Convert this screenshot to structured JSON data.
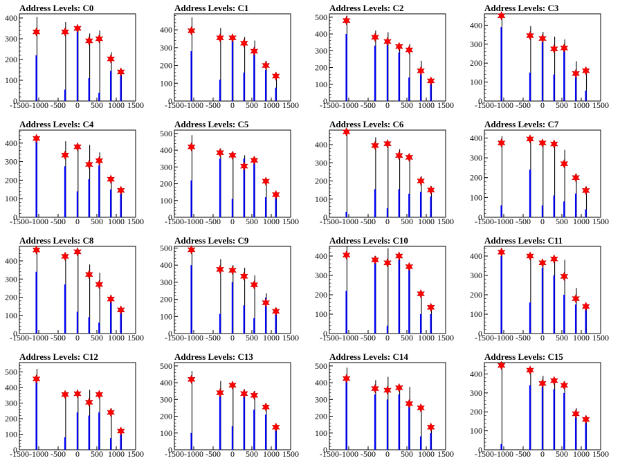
{
  "chart_data": [
    {
      "type": "bar",
      "title": "Address Levels: C0",
      "xlim": [
        -1500,
        1500
      ],
      "ylim": [
        0,
        420
      ],
      "yticks": [
        0,
        100,
        200,
        300,
        400
      ],
      "xticks": [
        "-1500",
        "-1000",
        "-500",
        "0",
        "500",
        "1000",
        "1500"
      ],
      "peak_x": [
        -1060,
        -320,
        0,
        300,
        560,
        860,
        1120
      ],
      "peak_y": [
        333,
        333,
        350,
        290,
        300,
        203,
        140
      ],
      "bar_top": [
        405,
        380,
        360,
        325,
        340,
        235,
        155
      ],
      "blue_part": [
        220,
        55,
        340,
        110,
        40,
        145,
        135
      ]
    },
    {
      "type": "bar",
      "title": "Address Levels: C1",
      "xlim": [
        -1500,
        1500
      ],
      "ylim": [
        0,
        490
      ],
      "yticks": [
        0,
        100,
        200,
        300,
        400
      ],
      "xticks": [
        "-1500",
        "-1000",
        "-500",
        "0",
        "500",
        "1000",
        "1500"
      ],
      "peak_x": [
        -1060,
        -320,
        0,
        300,
        560,
        860,
        1120
      ],
      "peak_y": [
        395,
        355,
        355,
        325,
        280,
        200,
        140
      ],
      "bar_top": [
        470,
        410,
        370,
        360,
        340,
        225,
        160
      ],
      "blue_part": [
        280,
        120,
        340,
        160,
        300,
        175,
        75
      ]
    },
    {
      "type": "bar",
      "title": "Address Levels: C2",
      "xlim": [
        -1500,
        1500
      ],
      "ylim": [
        0,
        520
      ],
      "yticks": [
        0,
        100,
        200,
        300,
        400,
        500
      ],
      "xticks": [
        "-1500",
        "-1000",
        "-500",
        "0",
        "500",
        "1000",
        "1500"
      ],
      "peak_x": [
        -1060,
        -320,
        0,
        300,
        560,
        860,
        1120
      ],
      "peak_y": [
        480,
        380,
        355,
        325,
        305,
        180,
        120
      ],
      "bar_top": [
        510,
        420,
        410,
        335,
        340,
        240,
        125
      ],
      "blue_part": [
        400,
        330,
        350,
        290,
        140,
        160,
        105
      ]
    },
    {
      "type": "bar",
      "title": "Address Levels: C3",
      "xlim": [
        -1500,
        1500
      ],
      "ylim": [
        0,
        460
      ],
      "yticks": [
        0,
        100,
        200,
        300,
        400
      ],
      "xticks": [
        "-1500",
        "-1000",
        "-500",
        "0",
        "500",
        "1000",
        "1500"
      ],
      "peak_x": [
        -1060,
        -320,
        0,
        300,
        560,
        860,
        1120
      ],
      "peak_y": [
        450,
        345,
        330,
        275,
        280,
        145,
        160
      ],
      "bar_top": [
        460,
        395,
        365,
        340,
        325,
        210,
        165
      ],
      "blue_part": [
        390,
        150,
        310,
        140,
        280,
        125,
        55
      ]
    },
    {
      "type": "bar",
      "title": "Address Levels: C4",
      "xlim": [
        -1500,
        1500
      ],
      "ylim": [
        0,
        470
      ],
      "yticks": [
        0,
        100,
        200,
        300,
        400
      ],
      "xticks": [
        "-1500",
        "-1000",
        "-500",
        "0",
        "500",
        "1000",
        "1500"
      ],
      "peak_x": [
        -1060,
        -320,
        0,
        300,
        560,
        860,
        1120
      ],
      "peak_y": [
        425,
        335,
        380,
        285,
        305,
        205,
        145
      ],
      "bar_top": [
        440,
        410,
        395,
        390,
        350,
        215,
        150
      ],
      "blue_part": [
        420,
        275,
        140,
        205,
        280,
        150,
        125
      ]
    },
    {
      "type": "bar",
      "title": "Address Levels: C5",
      "xlim": [
        -1500,
        1500
      ],
      "ylim": [
        0,
        520
      ],
      "yticks": [
        0,
        100,
        200,
        300,
        400,
        500
      ],
      "xticks": [
        "-1500",
        "-1000",
        "-500",
        "0",
        "500",
        "1000",
        "1500"
      ],
      "peak_x": [
        -1060,
        -320,
        0,
        300,
        560,
        860,
        1120
      ],
      "peak_y": [
        420,
        385,
        370,
        305,
        340,
        215,
        135
      ],
      "bar_top": [
        490,
        410,
        390,
        370,
        360,
        225,
        145
      ],
      "blue_part": [
        220,
        350,
        110,
        350,
        320,
        120,
        120
      ]
    },
    {
      "type": "bar",
      "title": "Address Levels: C6",
      "xlim": [
        -1500,
        1500
      ],
      "ylim": [
        0,
        480
      ],
      "yticks": [
        0,
        100,
        200,
        300,
        400
      ],
      "xticks": [
        "-1500",
        "-1000",
        "-500",
        "0",
        "500",
        "1000",
        "1500"
      ],
      "peak_x": [
        -1060,
        -320,
        0,
        300,
        560,
        860,
        1120
      ],
      "peak_y": [
        470,
        395,
        405,
        340,
        330,
        200,
        150
      ],
      "bar_top": [
        480,
        440,
        405,
        375,
        340,
        225,
        170
      ],
      "blue_part": [
        30,
        155,
        50,
        155,
        130,
        140,
        115
      ]
    },
    {
      "type": "bar",
      "title": "Address Levels: C7",
      "xlim": [
        -1500,
        1500
      ],
      "ylim": [
        0,
        440
      ],
      "yticks": [
        0,
        100,
        200,
        300,
        400
      ],
      "xticks": [
        "-1500",
        "-1000",
        "-500",
        "0",
        "500",
        "1000",
        "1500"
      ],
      "peak_x": [
        -1060,
        -320,
        0,
        300,
        560,
        860,
        1120
      ],
      "peak_y": [
        375,
        395,
        375,
        370,
        270,
        200,
        135
      ],
      "bar_top": [
        410,
        400,
        380,
        375,
        340,
        220,
        155
      ],
      "blue_part": [
        60,
        240,
        60,
        110,
        80,
        120,
        40
      ]
    },
    {
      "type": "bar",
      "title": "Address Levels: C8",
      "xlim": [
        -1500,
        1500
      ],
      "ylim": [
        0,
        480
      ],
      "yticks": [
        0,
        100,
        200,
        300,
        400
      ],
      "xticks": [
        "-1500",
        "-1000",
        "-500",
        "0",
        "500",
        "1000",
        "1500"
      ],
      "peak_x": [
        -1060,
        -320,
        0,
        300,
        560,
        860,
        1120
      ],
      "peak_y": [
        460,
        425,
        450,
        325,
        270,
        190,
        130
      ],
      "bar_top": [
        470,
        445,
        460,
        380,
        335,
        210,
        140
      ],
      "blue_part": [
        340,
        270,
        120,
        90,
        60,
        190,
        120
      ]
    },
    {
      "type": "bar",
      "title": "Address Levels: C9",
      "xlim": [
        -1500,
        1500
      ],
      "ylim": [
        0,
        510
      ],
      "yticks": [
        0,
        100,
        200,
        300,
        400,
        500
      ],
      "xticks": [
        "-1500",
        "-1000",
        "-500",
        "0",
        "500",
        "1000",
        "1500"
      ],
      "peak_x": [
        -1060,
        -320,
        0,
        300,
        560,
        860,
        1120
      ],
      "peak_y": [
        490,
        375,
        370,
        335,
        285,
        180,
        130
      ],
      "bar_top": [
        500,
        435,
        400,
        385,
        340,
        235,
        150
      ],
      "blue_part": [
        400,
        115,
        300,
        165,
        90,
        210,
        120
      ]
    },
    {
      "type": "bar",
      "title": "Address Levels: C10",
      "xlim": [
        -1500,
        1500
      ],
      "ylim": [
        0,
        450
      ],
      "yticks": [
        0,
        100,
        200,
        300,
        400
      ],
      "xticks": [
        "-1500",
        "-1000",
        "-500",
        "0",
        "500",
        "1000",
        "1500"
      ],
      "peak_x": [
        -1060,
        -320,
        0,
        300,
        560,
        860,
        1120
      ],
      "peak_y": [
        405,
        380,
        365,
        400,
        345,
        205,
        135
      ],
      "bar_top": [
        450,
        400,
        440,
        405,
        350,
        220,
        150
      ],
      "blue_part": [
        220,
        380,
        40,
        380,
        330,
        100,
        100
      ]
    },
    {
      "type": "bar",
      "title": "Address Levels: C11",
      "xlim": [
        -1500,
        1500
      ],
      "ylim": [
        0,
        450
      ],
      "yticks": [
        0,
        100,
        200,
        300,
        400
      ],
      "xticks": [
        "-1500",
        "-1000",
        "-500",
        "0",
        "500",
        "1000",
        "1500"
      ],
      "peak_x": [
        -1060,
        -320,
        0,
        300,
        560,
        860,
        1120
      ],
      "peak_y": [
        420,
        400,
        365,
        385,
        295,
        180,
        140
      ],
      "bar_top": [
        440,
        405,
        370,
        390,
        380,
        235,
        150
      ],
      "blue_part": [
        400,
        160,
        340,
        300,
        200,
        150,
        130
      ]
    },
    {
      "type": "bar",
      "title": "Address Levels: C12",
      "xlim": [
        -1500,
        1500
      ],
      "ylim": [
        0,
        560
      ],
      "yticks": [
        0,
        100,
        200,
        300,
        400,
        500
      ],
      "xticks": [
        "-1500",
        "-1000",
        "-500",
        "0",
        "500",
        "1000",
        "1500"
      ],
      "peak_x": [
        -1060,
        -320,
        0,
        300,
        560,
        860,
        1120
      ],
      "peak_y": [
        455,
        355,
        360,
        305,
        355,
        240,
        120
      ],
      "bar_top": [
        520,
        360,
        370,
        385,
        370,
        265,
        130
      ],
      "blue_part": [
        450,
        80,
        240,
        220,
        240,
        75,
        110
      ]
    },
    {
      "type": "bar",
      "title": "Address Levels: C13",
      "xlim": [
        -1500,
        1500
      ],
      "ylim": [
        0,
        520
      ],
      "yticks": [
        0,
        100,
        200,
        300,
        400,
        500
      ],
      "xticks": [
        "-1500",
        "-1000",
        "-500",
        "0",
        "500",
        "1000",
        "1500"
      ],
      "peak_x": [
        -1060,
        -320,
        0,
        300,
        560,
        860,
        1120
      ],
      "peak_y": [
        420,
        340,
        385,
        335,
        325,
        255,
        135
      ],
      "bar_top": [
        470,
        410,
        400,
        360,
        350,
        275,
        140
      ],
      "blue_part": [
        100,
        330,
        140,
        330,
        240,
        210,
        120
      ]
    },
    {
      "type": "bar",
      "title": "Address Levels: C14",
      "xlim": [
        -1500,
        1500
      ],
      "ylim": [
        0,
        520
      ],
      "yticks": [
        0,
        100,
        200,
        300,
        400,
        500
      ],
      "xticks": [
        "-1500",
        "-1000",
        "-500",
        "0",
        "500",
        "1000",
        "1500"
      ],
      "peak_x": [
        -1060,
        -320,
        0,
        300,
        560,
        860,
        1120
      ],
      "peak_y": [
        425,
        365,
        355,
        370,
        275,
        250,
        135
      ],
      "bar_top": [
        490,
        415,
        435,
        385,
        375,
        265,
        145
      ],
      "blue_part": [
        420,
        330,
        300,
        330,
        260,
        80,
        100
      ]
    },
    {
      "type": "bar",
      "title": "Address Levels: C15",
      "xlim": [
        -1500,
        1500
      ],
      "ylim": [
        0,
        460
      ],
      "yticks": [
        0,
        100,
        200,
        300,
        400
      ],
      "xticks": [
        "-1500",
        "-1000",
        "-500",
        "0",
        "500",
        "1000",
        "1500"
      ],
      "peak_x": [
        -1060,
        -320,
        0,
        300,
        560,
        860,
        1120
      ],
      "peak_y": [
        445,
        420,
        350,
        365,
        340,
        190,
        160
      ],
      "bar_top": [
        460,
        425,
        390,
        380,
        360,
        220,
        180
      ],
      "blue_part": [
        30,
        340,
        330,
        320,
        300,
        170,
        150
      ]
    }
  ]
}
